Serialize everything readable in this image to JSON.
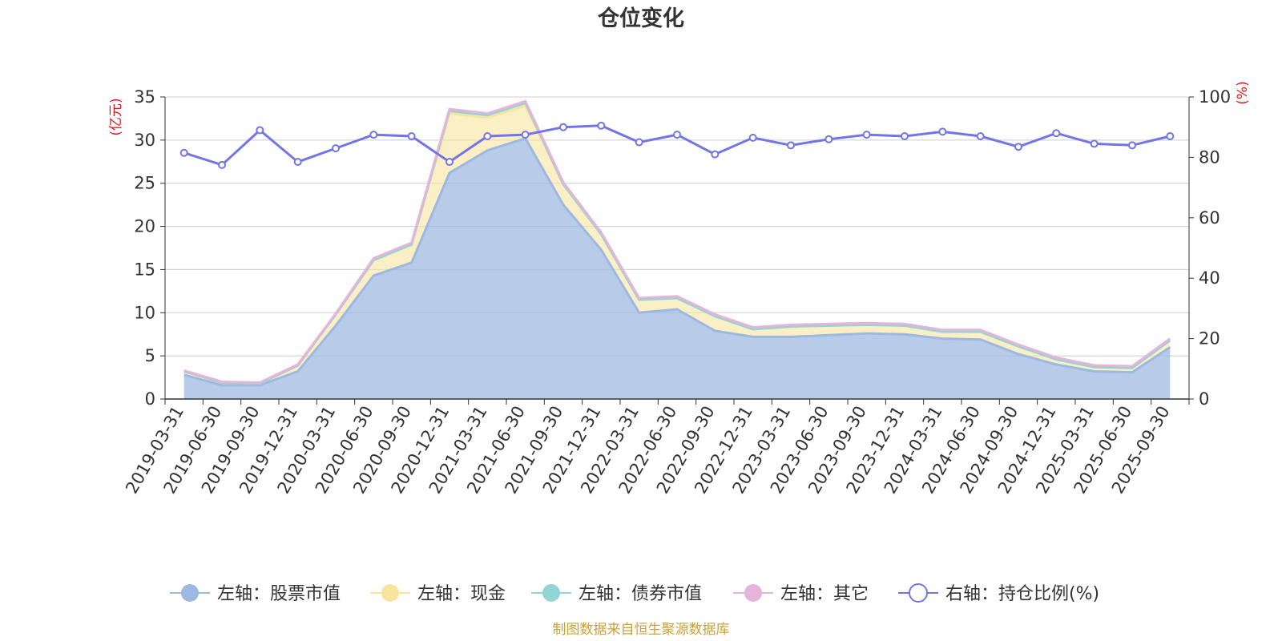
{
  "chart_data": {
    "type": "area",
    "title": "仓位变化",
    "left_axis_unit": "(亿元)",
    "right_axis_unit": "(%)",
    "ylim_left": [
      0,
      35
    ],
    "yticks_left": [
      "0",
      "5",
      "10",
      "15",
      "20",
      "25",
      "30",
      "35"
    ],
    "ylim_right": [
      0,
      100
    ],
    "yticks_right": [
      "0",
      "20",
      "40",
      "60",
      "80",
      "100"
    ],
    "grid": true,
    "legend_position": "bottom",
    "categories": [
      "2019-03-31",
      "2019-06-30",
      "2019-09-30",
      "2019-12-31",
      "2020-03-31",
      "2020-06-30",
      "2020-09-30",
      "2020-12-31",
      "2021-03-31",
      "2021-06-30",
      "2021-09-30",
      "2021-12-31",
      "2022-03-31",
      "2022-06-30",
      "2022-09-30",
      "2022-12-31",
      "2023-03-31",
      "2023-06-30",
      "2023-09-30",
      "2023-12-31",
      "2024-03-31",
      "2024-06-30",
      "2024-09-30",
      "2024-12-31",
      "2025-03-31",
      "2025-06-30",
      "2025-09-30"
    ],
    "series": [
      {
        "name": "左轴：股票市值",
        "axis": "left",
        "stack": true,
        "color": "#9db8e1",
        "values": [
          2.8,
          1.6,
          1.6,
          3.2,
          8.5,
          14.3,
          15.8,
          26.2,
          28.8,
          30.2,
          22.5,
          17.3,
          10.0,
          10.4,
          7.9,
          7.2,
          7.2,
          7.4,
          7.6,
          7.5,
          7.0,
          6.9,
          5.2,
          4.0,
          3.2,
          3.1,
          6.0
        ]
      },
      {
        "name": "左轴：现金",
        "axis": "left",
        "stack": true,
        "color": "#f7e59e",
        "values": [
          0.4,
          0.3,
          0.2,
          0.7,
          1.3,
          1.8,
          2.1,
          6.9,
          3.8,
          3.8,
          2.4,
          1.8,
          1.5,
          1.3,
          1.7,
          0.9,
          1.2,
          1.1,
          1.0,
          1.0,
          0.8,
          0.9,
          0.9,
          0.6,
          0.5,
          0.5,
          0.8
        ]
      },
      {
        "name": "左轴：债券市值",
        "axis": "left",
        "stack": true,
        "color": "#93d4d4",
        "values": [
          0,
          0,
          0,
          0,
          0,
          0,
          0,
          0.3,
          0.3,
          0.3,
          0,
          0,
          0,
          0,
          0,
          0,
          0,
          0,
          0,
          0,
          0,
          0,
          0,
          0,
          0,
          0,
          0
        ]
      },
      {
        "name": "左轴：其它",
        "axis": "left",
        "stack": true,
        "color": "#e6b3d9",
        "values": [
          0.1,
          0.1,
          0.1,
          0.1,
          0.1,
          0.2,
          0.2,
          0.2,
          0.2,
          0.2,
          0.2,
          0.2,
          0.2,
          0.2,
          0.2,
          0.2,
          0.2,
          0.2,
          0.2,
          0.2,
          0.2,
          0.2,
          0.2,
          0.2,
          0.2,
          0.2,
          0.2
        ]
      },
      {
        "name": "右轴：持仓比例(%)",
        "axis": "right",
        "type": "line",
        "color": "#7374e6",
        "values": [
          81.5,
          77.5,
          89.0,
          78.5,
          83.0,
          87.5,
          87.0,
          78.5,
          87.0,
          87.5,
          90.0,
          90.5,
          85.0,
          87.5,
          81.0,
          86.5,
          84.0,
          86.0,
          87.5,
          87.0,
          88.5,
          87.0,
          83.5,
          88.0,
          84.5,
          84.0,
          87.0
        ]
      }
    ]
  },
  "legend": {
    "items": [
      {
        "label": "左轴：股票市值",
        "color": "#9db8e1",
        "marker": "filled"
      },
      {
        "label": "左轴：现金",
        "color": "#f7e59e",
        "marker": "filled"
      },
      {
        "label": "左轴：债券市值",
        "color": "#93d4d4",
        "marker": "filled"
      },
      {
        "label": "左轴：其它",
        "color": "#e6b3d9",
        "marker": "filled"
      },
      {
        "label": "右轴：持仓比例(%)",
        "color": "#7374e6",
        "marker": "hollow"
      }
    ]
  },
  "source_note": "制图数据来自恒生聚源数据库"
}
